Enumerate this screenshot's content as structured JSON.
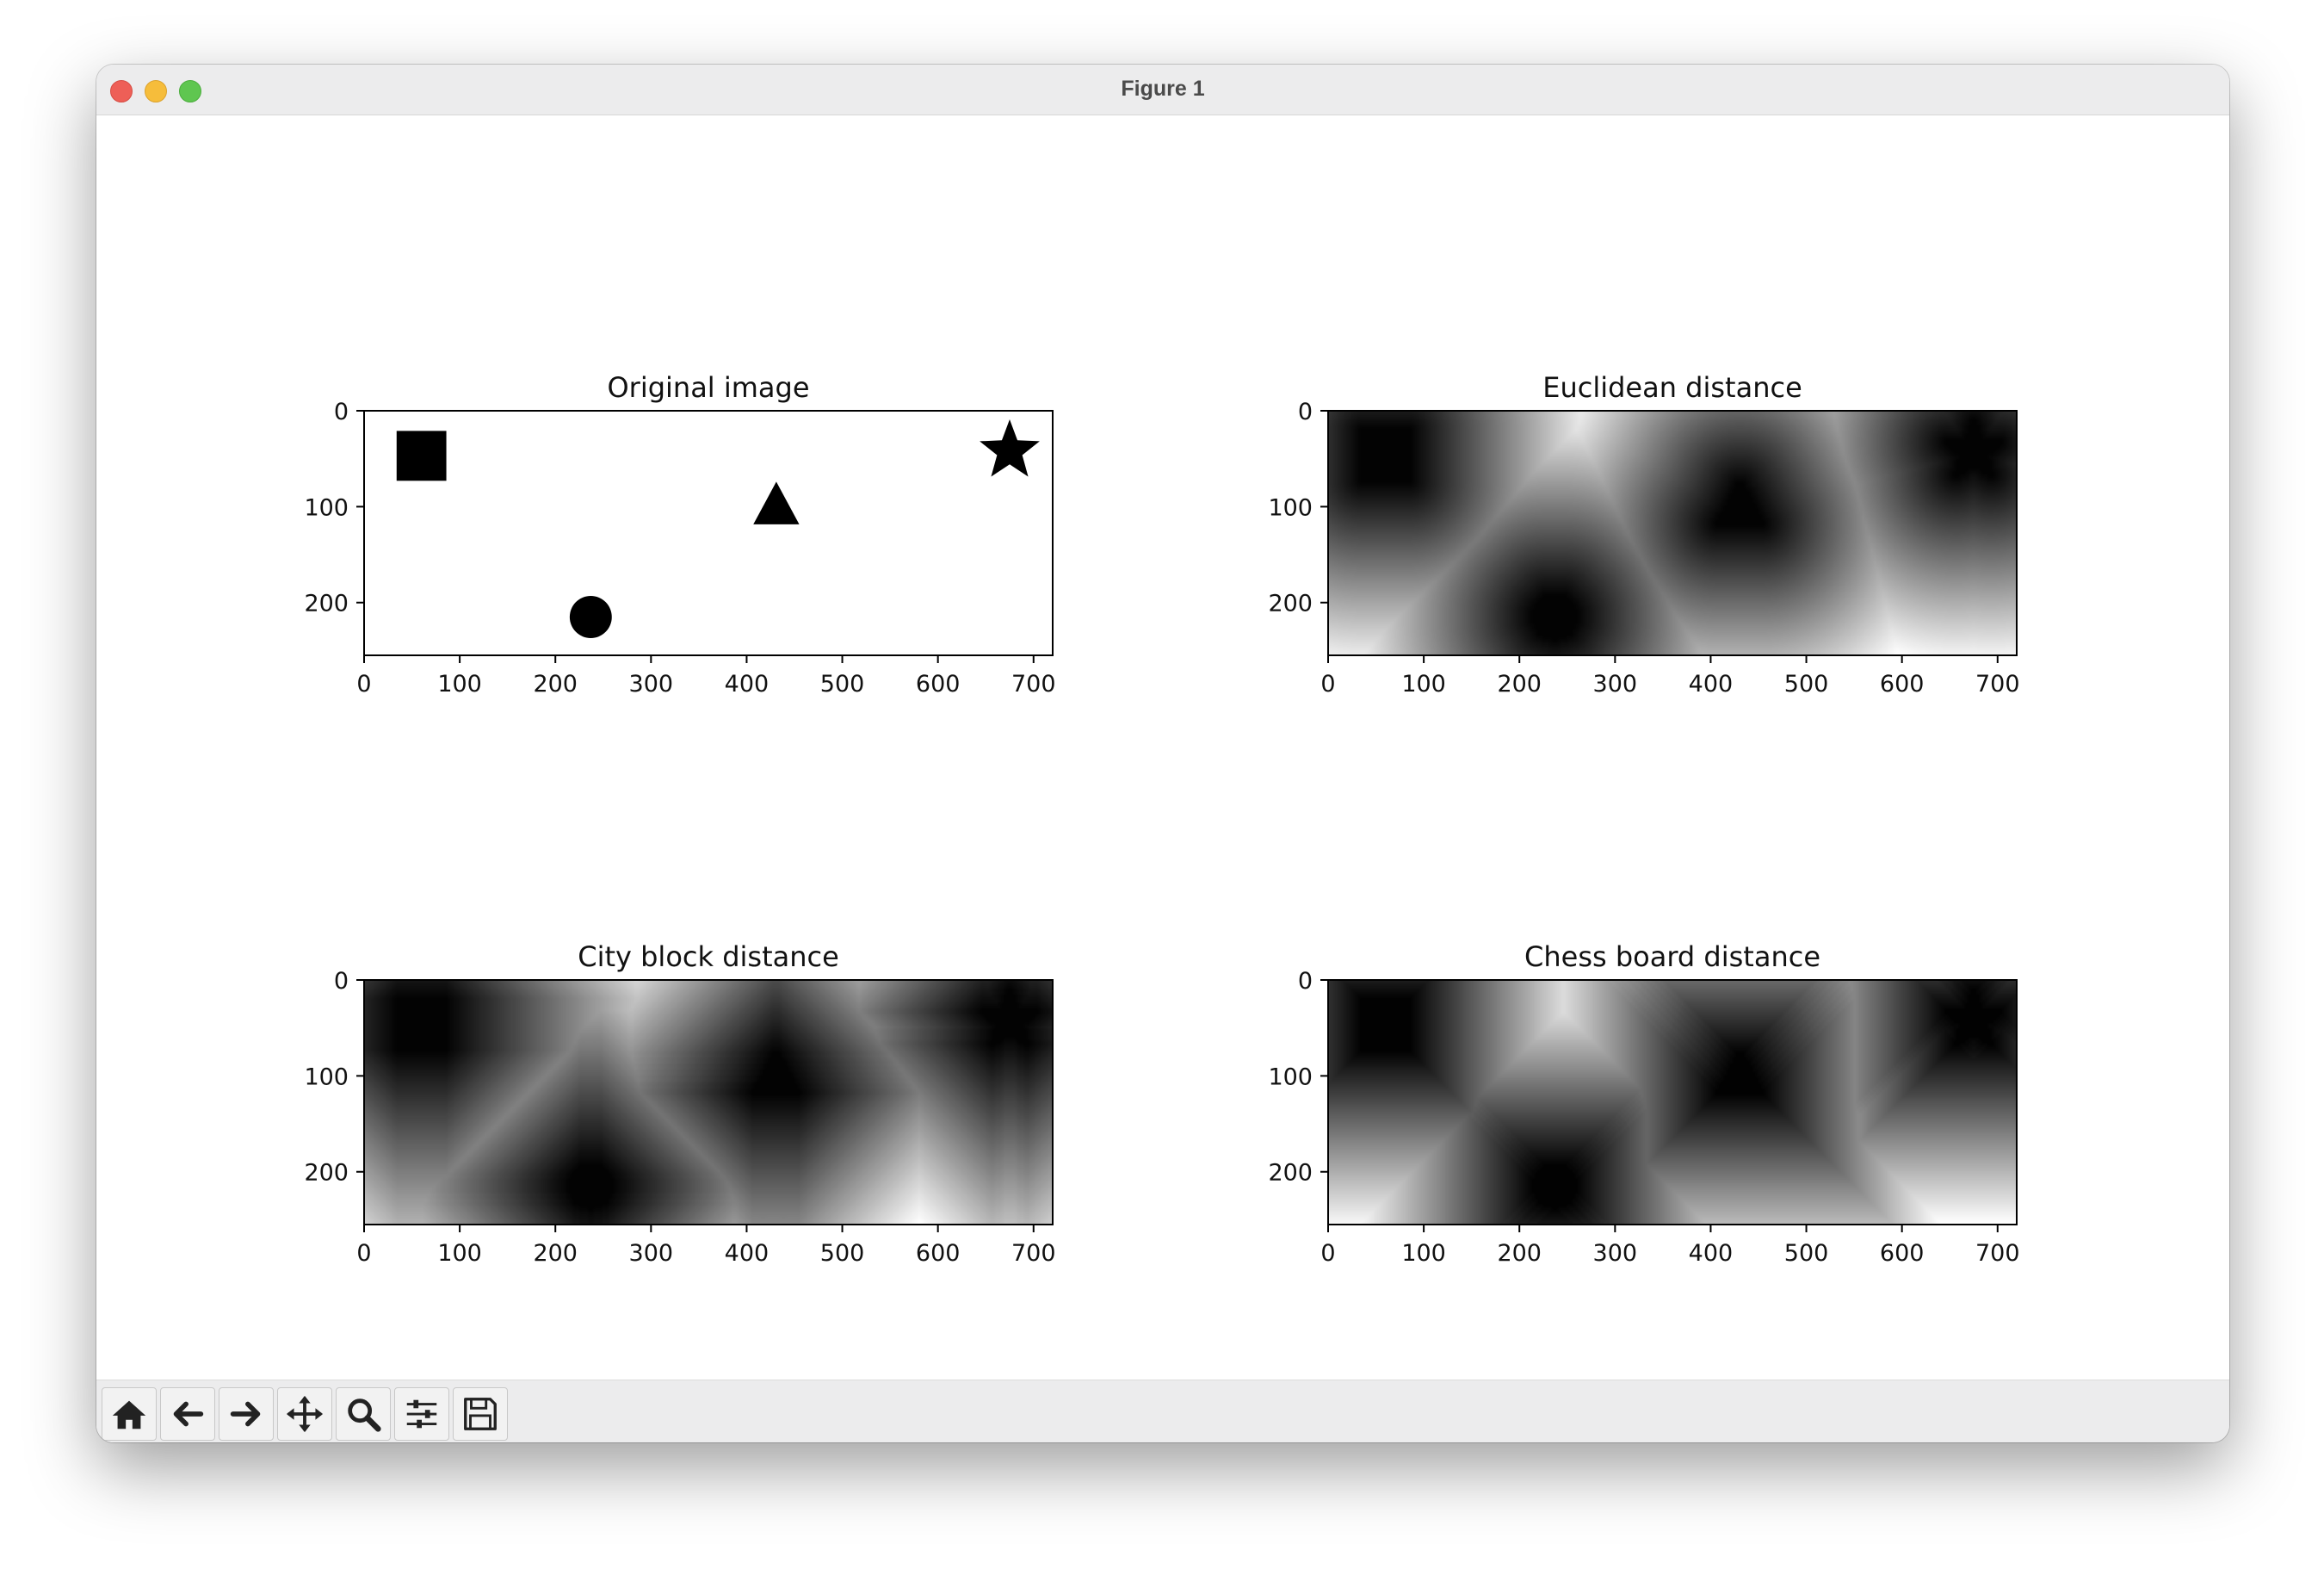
{
  "window": {
    "title": "Figure 1"
  },
  "toolbar": {
    "buttons": [
      {
        "name": "home-button",
        "icon": "home-icon"
      },
      {
        "name": "back-button",
        "icon": "arrow-left-icon"
      },
      {
        "name": "forward-button",
        "icon": "arrow-right-icon"
      },
      {
        "name": "pan-button",
        "icon": "move-icon"
      },
      {
        "name": "zoom-button",
        "icon": "magnifier-icon"
      },
      {
        "name": "configure-subplots-button",
        "icon": "sliders-icon"
      },
      {
        "name": "save-button",
        "icon": "floppy-disk-icon"
      }
    ]
  },
  "chart_data": [
    {
      "type": "heatmap",
      "title": "Original image",
      "colormap": "gray",
      "xlim": [
        0,
        720
      ],
      "ylim": [
        255,
        0
      ],
      "xticks": [
        0,
        100,
        200,
        300,
        400,
        500,
        600,
        700
      ],
      "yticks": [
        0,
        100,
        200
      ],
      "shapes": [
        {
          "kind": "square",
          "center": [
            60,
            47
          ],
          "half_size": 26
        },
        {
          "kind": "circle",
          "center": [
            237,
            215
          ],
          "radius": 22
        },
        {
          "kind": "triangle",
          "center": [
            431,
            98
          ],
          "half_size": 24
        },
        {
          "kind": "star",
          "center": [
            675,
            42
          ],
          "radius": 33
        }
      ]
    },
    {
      "type": "heatmap",
      "title": "Euclidean distance",
      "colormap": "gray",
      "metric": "euclidean",
      "xlim": [
        0,
        720
      ],
      "ylim": [
        255,
        0
      ],
      "xticks": [
        0,
        100,
        200,
        300,
        400,
        500,
        600,
        700
      ],
      "yticks": [
        0,
        100,
        200
      ]
    },
    {
      "type": "heatmap",
      "title": "City block distance",
      "colormap": "gray",
      "metric": "cityblock",
      "xlim": [
        0,
        720
      ],
      "ylim": [
        255,
        0
      ],
      "xticks": [
        0,
        100,
        200,
        300,
        400,
        500,
        600,
        700
      ],
      "yticks": [
        0,
        100,
        200
      ]
    },
    {
      "type": "heatmap",
      "title": "Chess board distance",
      "colormap": "gray",
      "metric": "chessboard",
      "xlim": [
        0,
        720
      ],
      "ylim": [
        255,
        0
      ],
      "xticks": [
        0,
        100,
        200,
        300,
        400,
        500,
        600,
        700
      ],
      "yticks": [
        0,
        100,
        200
      ]
    }
  ]
}
